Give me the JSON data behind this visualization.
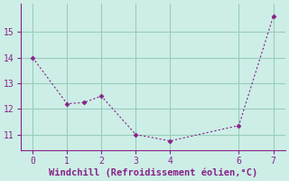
{
  "x": [
    0,
    1,
    1.5,
    2,
    3,
    4,
    6,
    7
  ],
  "y": [
    14.0,
    12.2,
    12.25,
    12.5,
    11.0,
    10.75,
    11.35,
    15.6
  ],
  "line_color": "#882288",
  "marker": "D",
  "marker_size": 2.5,
  "xlabel": "Windchill (Refroidissement éolien,°C)",
  "xlim": [
    -0.35,
    7.35
  ],
  "ylim": [
    10.4,
    16.1
  ],
  "yticks": [
    11,
    12,
    13,
    14,
    15
  ],
  "xticks": [
    0,
    1,
    2,
    3,
    4,
    6,
    7
  ],
  "grid_color": "#99ccbb",
  "bg_color": "#cceee6",
  "xlabel_color": "#882288",
  "xlabel_fontsize": 7.5,
  "tick_fontsize": 7.0,
  "tick_color": "#882288",
  "spine_color": "#882288"
}
